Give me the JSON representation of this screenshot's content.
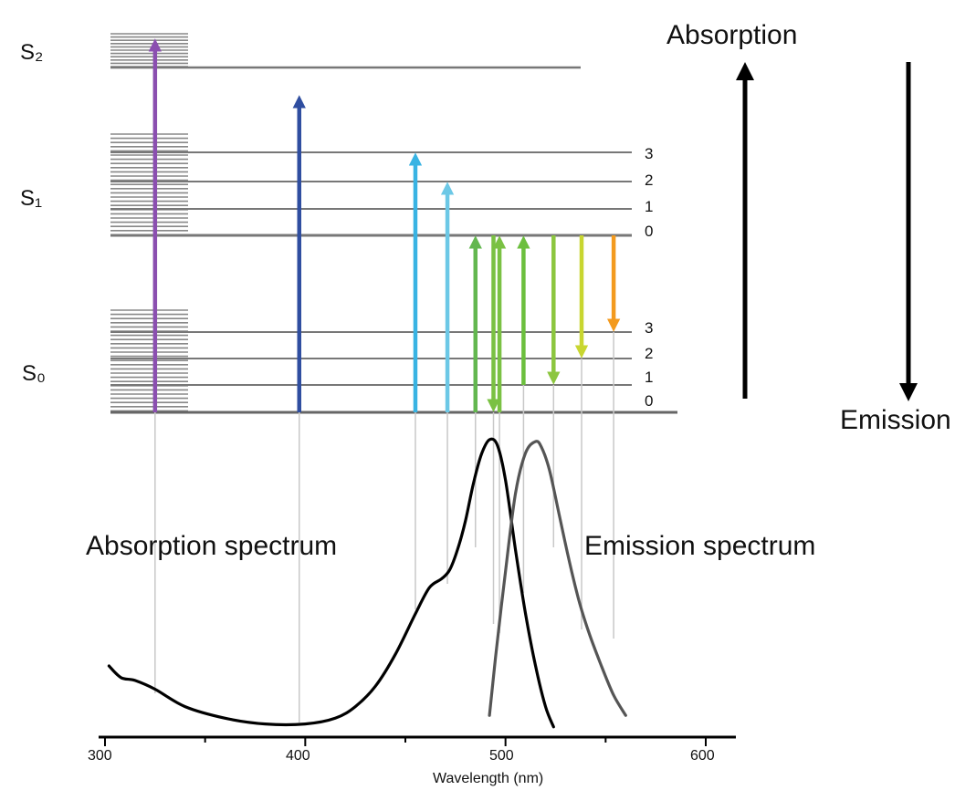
{
  "states": [
    {
      "name": "S₂"
    },
    {
      "name": "S₁"
    },
    {
      "name": "S₀"
    }
  ],
  "vibrational_levels_s1": [
    "3",
    "2",
    "1",
    "0"
  ],
  "vibrational_levels_s0": [
    "3",
    "2",
    "1",
    "0"
  ],
  "legend": {
    "absorption": "Absorption",
    "emission": "Emission"
  },
  "spectra": {
    "absorption_label": "Absorption spectrum",
    "emission_label": "Emission spectrum"
  },
  "axis": {
    "title": "Wavelength (nm)",
    "ticks": [
      "300",
      "400",
      "500",
      "600"
    ],
    "range": [
      300,
      600
    ]
  },
  "transitions": [
    {
      "type": "absorption",
      "wavelength_nm": 325,
      "from": "S0 v0",
      "to": "S2",
      "color": "#8b4fb0"
    },
    {
      "type": "absorption",
      "wavelength_nm": 397,
      "from": "S0 v0",
      "to": "S2 higher",
      "color": "#2f4ea0"
    },
    {
      "type": "absorption",
      "wavelength_nm": 455,
      "from": "S0 v0",
      "to": "S1 v3",
      "color": "#38b3e3"
    },
    {
      "type": "absorption",
      "wavelength_nm": 471,
      "from": "S0 v0",
      "to": "S1 v2",
      "color": "#6cc8e6"
    },
    {
      "type": "absorption",
      "wavelength_nm": 485,
      "from": "S0 v0",
      "to": "S1 v0",
      "color": "#63b74f"
    },
    {
      "type": "emission",
      "wavelength_nm": 494,
      "from": "S1 v0",
      "to": "S0 v0",
      "color": "#7ac143"
    },
    {
      "type": "absorption",
      "wavelength_nm": 497,
      "from": "S0 v0",
      "to": "S1 v0",
      "color": "#7ac143"
    },
    {
      "type": "absorption",
      "wavelength_nm": 509,
      "from": "S0 v1",
      "to": "S1 v0",
      "color": "#6cbf3e"
    },
    {
      "type": "emission",
      "wavelength_nm": 524,
      "from": "S1 v0",
      "to": "S0 v1",
      "color": "#8cc63f"
    },
    {
      "type": "emission",
      "wavelength_nm": 538,
      "from": "S1 v0",
      "to": "S0 v2",
      "color": "#c8d630"
    },
    {
      "type": "emission",
      "wavelength_nm": 554,
      "from": "S1 v0",
      "to": "S0 v3",
      "color": "#f39a1e"
    }
  ],
  "chart_data": {
    "type": "line",
    "xlabel": "Wavelength (nm)",
    "xlim": [
      300,
      600
    ],
    "series": [
      {
        "name": "Absorption spectrum",
        "x": [
          302,
          308,
          315,
          325,
          340,
          360,
          380,
          400,
          415,
          425,
          435,
          445,
          455,
          462,
          468,
          472,
          476,
          480,
          484,
          488,
          492,
          496,
          500,
          505,
          510,
          515,
          520,
          524
        ],
        "y": [
          0.22,
          0.18,
          0.17,
          0.14,
          0.08,
          0.04,
          0.02,
          0.02,
          0.04,
          0.08,
          0.15,
          0.26,
          0.4,
          0.49,
          0.52,
          0.55,
          0.62,
          0.72,
          0.85,
          0.95,
          1.0,
          0.98,
          0.86,
          0.62,
          0.4,
          0.22,
          0.08,
          0.01
        ]
      },
      {
        "name": "Emission spectrum",
        "x": [
          492,
          495,
          500,
          505,
          510,
          515,
          518,
          522,
          527,
          532,
          537,
          542,
          548,
          554,
          560
        ],
        "y": [
          0.05,
          0.25,
          0.55,
          0.82,
          0.96,
          1.0,
          0.98,
          0.9,
          0.74,
          0.58,
          0.44,
          0.33,
          0.22,
          0.12,
          0.05
        ]
      }
    ]
  }
}
